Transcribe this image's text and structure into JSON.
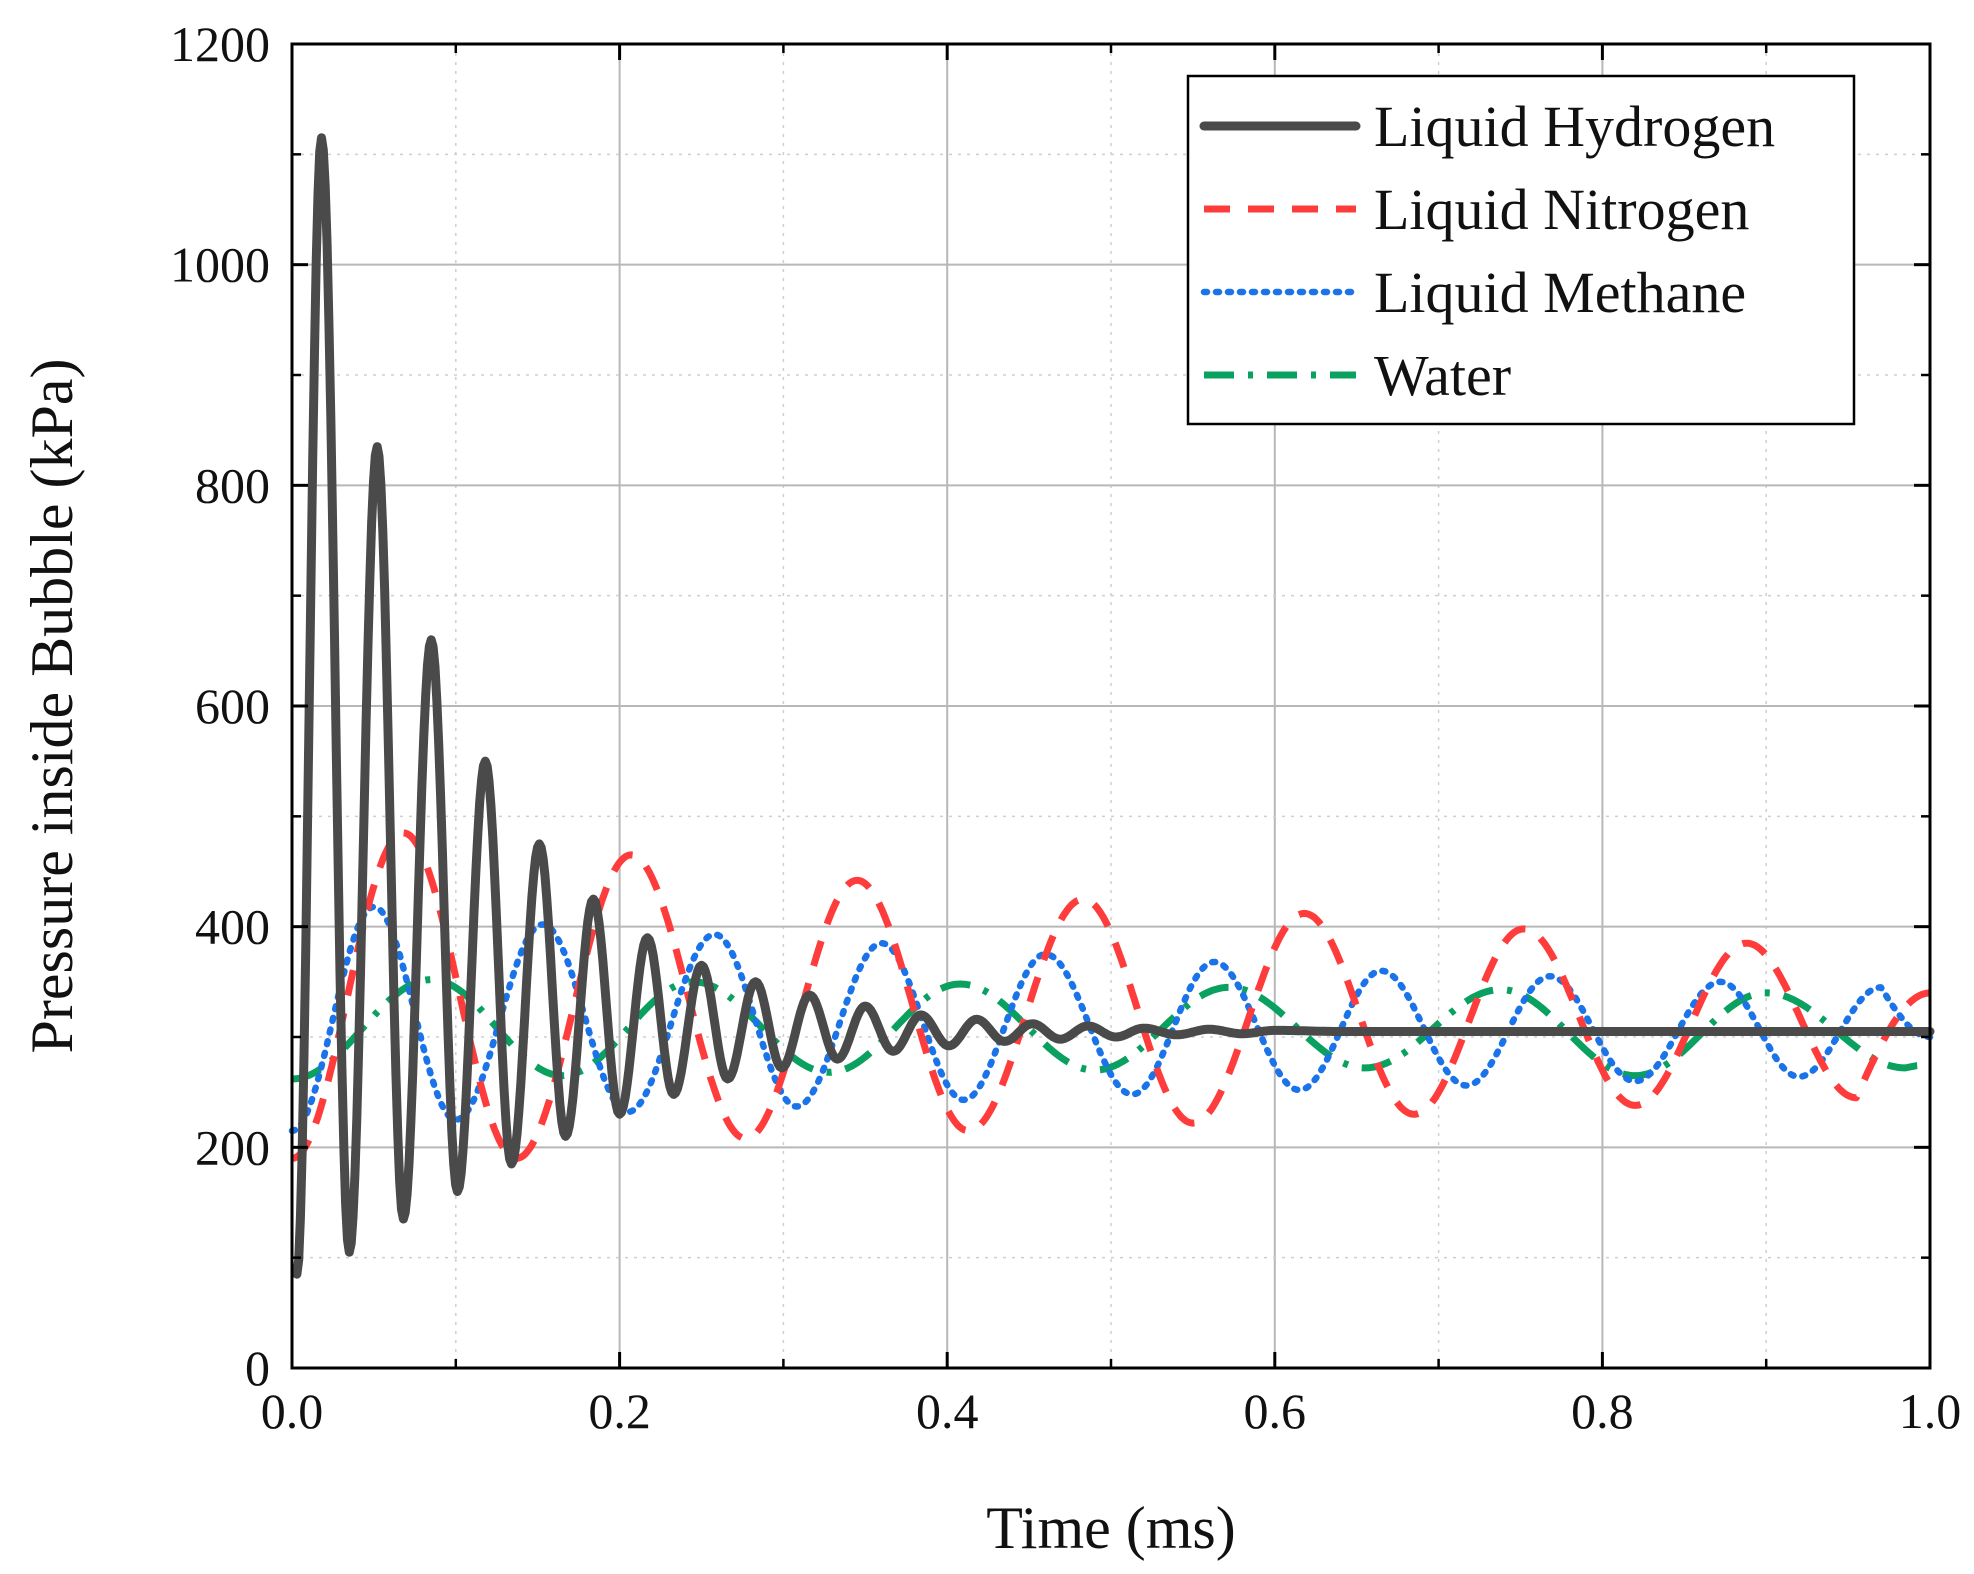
{
  "chart_data": {
    "type": "line",
    "title": "",
    "xlabel": "Time (ms)",
    "ylabel": "Pressure inside Bubble (kPa)",
    "xlim": [
      0.0,
      1.0
    ],
    "ylim": [
      0,
      1200
    ],
    "xticks": [
      0.0,
      0.2,
      0.4,
      0.6,
      0.8,
      1.0
    ],
    "xtick_labels": [
      "0.0",
      "0.2",
      "0.4",
      "0.6",
      "0.8",
      "1.0"
    ],
    "yticks": [
      0,
      200,
      400,
      600,
      800,
      1000,
      1200
    ],
    "ytick_labels": [
      "0",
      "200",
      "400",
      "600",
      "800",
      "1000",
      "1200"
    ],
    "grid": true,
    "legend_position": "top-right",
    "series": [
      {
        "name": "Liquid Hydrogen",
        "color": "#4a4a4a",
        "style": "solid",
        "peaks": [
          [
            0.018,
            1115
          ],
          [
            0.052,
            835
          ],
          [
            0.085,
            660
          ],
          [
            0.118,
            550
          ],
          [
            0.151,
            475
          ],
          [
            0.184,
            425
          ],
          [
            0.217,
            390
          ],
          [
            0.25,
            365
          ],
          [
            0.283,
            350
          ],
          [
            0.316,
            338
          ],
          [
            0.35,
            328
          ],
          [
            0.384,
            320
          ],
          [
            0.418,
            316
          ],
          [
            0.452,
            312
          ],
          [
            0.486,
            310
          ],
          [
            0.52,
            308
          ],
          [
            0.56,
            307
          ],
          [
            0.6,
            306
          ]
        ],
        "troughs": [
          [
            0.003,
            85
          ],
          [
            0.035,
            105
          ],
          [
            0.068,
            135
          ],
          [
            0.101,
            160
          ],
          [
            0.134,
            185
          ],
          [
            0.167,
            210
          ],
          [
            0.2,
            230
          ],
          [
            0.233,
            248
          ],
          [
            0.266,
            262
          ],
          [
            0.299,
            272
          ],
          [
            0.333,
            280
          ],
          [
            0.367,
            287
          ],
          [
            0.401,
            292
          ],
          [
            0.435,
            296
          ],
          [
            0.469,
            298
          ],
          [
            0.503,
            300
          ],
          [
            0.54,
            302
          ],
          [
            0.58,
            303
          ]
        ],
        "settle_value": 305
      },
      {
        "name": "Liquid Nitrogen",
        "color": "#ff3c3c",
        "style": "dashed",
        "peaks": [
          [
            0.068,
            485
          ],
          [
            0.207,
            465
          ],
          [
            0.345,
            442
          ],
          [
            0.483,
            425
          ],
          [
            0.618,
            412
          ],
          [
            0.752,
            398
          ],
          [
            0.888,
            385
          ]
        ],
        "troughs": [
          [
            0.0,
            190
          ],
          [
            0.137,
            190
          ],
          [
            0.277,
            208
          ],
          [
            0.413,
            215
          ],
          [
            0.55,
            222
          ],
          [
            0.685,
            230
          ],
          [
            0.82,
            238
          ],
          [
            0.955,
            245
          ]
        ],
        "end_value": 340
      },
      {
        "name": "Liquid Methane",
        "color": "#1a73e8",
        "style": "dotted",
        "peaks": [
          [
            0.05,
            418
          ],
          [
            0.153,
            402
          ],
          [
            0.258,
            393
          ],
          [
            0.36,
            385
          ],
          [
            0.46,
            375
          ],
          [
            0.563,
            368
          ],
          [
            0.665,
            360
          ],
          [
            0.768,
            355
          ],
          [
            0.872,
            350
          ],
          [
            0.97,
            345
          ]
        ],
        "troughs": [
          [
            0.0,
            215
          ],
          [
            0.1,
            225
          ],
          [
            0.205,
            232
          ],
          [
            0.308,
            237
          ],
          [
            0.41,
            243
          ],
          [
            0.513,
            248
          ],
          [
            0.615,
            252
          ],
          [
            0.717,
            256
          ],
          [
            0.82,
            260
          ],
          [
            0.92,
            264
          ]
        ],
        "end_value": 300
      },
      {
        "name": "Water",
        "color": "#0aa060",
        "style": "dash-dot",
        "peaks": [
          [
            0.085,
            352
          ],
          [
            0.245,
            350
          ],
          [
            0.408,
            348
          ],
          [
            0.572,
            345
          ],
          [
            0.738,
            343
          ],
          [
            0.9,
            340
          ]
        ],
        "troughs": [
          [
            0.0,
            262
          ],
          [
            0.165,
            265
          ],
          [
            0.328,
            268
          ],
          [
            0.49,
            270
          ],
          [
            0.655,
            272
          ],
          [
            0.82,
            265
          ],
          [
            0.985,
            272
          ]
        ],
        "end_value": 275
      }
    ]
  }
}
